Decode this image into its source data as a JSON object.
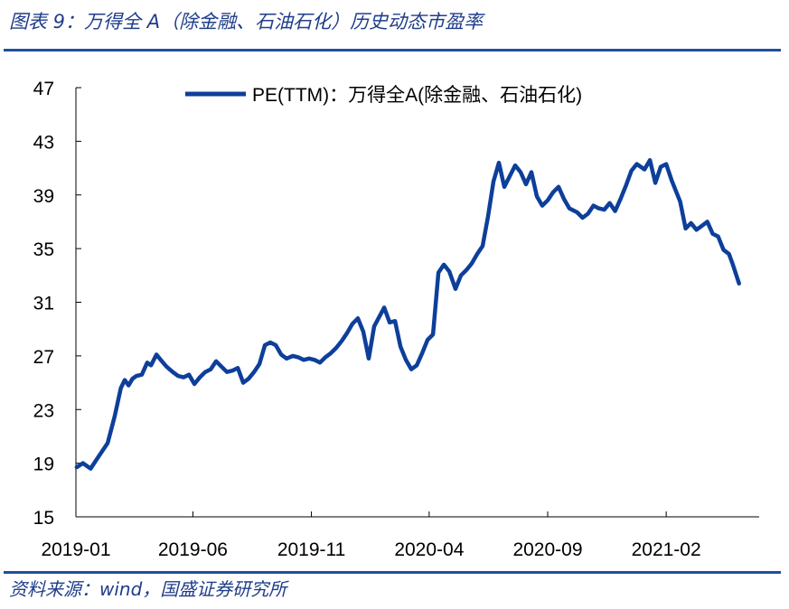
{
  "figure": {
    "title": "图表 9：万得全 A（除金融、石油石化）历史动态市盈率",
    "source": "资料来源：wind，国盛证券研究所"
  },
  "colors": {
    "line": "#0d3f9a",
    "accent": "#1f4fa0",
    "text_accent": "#1f3d8a"
  },
  "chart_data": {
    "type": "line",
    "title": "",
    "xlabel": "",
    "ylabel": "",
    "ylim": [
      15,
      47
    ],
    "yticks": [
      15,
      19,
      23,
      27,
      31,
      35,
      39,
      43,
      47
    ],
    "xlim": [
      "2019-01-01",
      "2021-06-01"
    ],
    "xticks": [
      "2019-01",
      "2019-06",
      "2019-11",
      "2020-04",
      "2020-09",
      "2021-02"
    ],
    "grid": false,
    "legend": "top-center",
    "series": [
      {
        "name": "PE(TTM)：万得全A(除金融、石油石化)",
        "x": [
          "2019-01-02",
          "2019-01-10",
          "2019-01-20",
          "2019-01-28",
          "2019-02-11",
          "2019-02-20",
          "2019-02-28",
          "2019-03-05",
          "2019-03-10",
          "2019-03-15",
          "2019-03-20",
          "2019-03-27",
          "2019-04-03",
          "2019-04-08",
          "2019-04-15",
          "2019-04-22",
          "2019-04-28",
          "2019-05-06",
          "2019-05-13",
          "2019-05-20",
          "2019-05-27",
          "2019-06-03",
          "2019-06-10",
          "2019-06-17",
          "2019-06-24",
          "2019-07-01",
          "2019-07-08",
          "2019-07-15",
          "2019-07-22",
          "2019-07-29",
          "2019-08-05",
          "2019-08-12",
          "2019-08-19",
          "2019-08-26",
          "2019-09-02",
          "2019-09-09",
          "2019-09-16",
          "2019-09-23",
          "2019-09-30",
          "2019-10-08",
          "2019-10-15",
          "2019-10-22",
          "2019-10-29",
          "2019-11-05",
          "2019-11-12",
          "2019-11-19",
          "2019-11-26",
          "2019-12-03",
          "2019-12-10",
          "2019-12-17",
          "2019-12-24",
          "2019-12-31",
          "2020-01-07",
          "2020-01-14",
          "2020-01-21",
          "2020-02-03",
          "2020-02-10",
          "2020-02-17",
          "2020-02-24",
          "2020-03-02",
          "2020-03-09",
          "2020-03-16",
          "2020-03-23",
          "2020-03-30",
          "2020-04-06",
          "2020-04-13",
          "2020-04-20",
          "2020-04-27",
          "2020-05-05",
          "2020-05-12",
          "2020-05-19",
          "2020-05-26",
          "2020-06-02",
          "2020-06-09",
          "2020-06-16",
          "2020-06-23",
          "2020-06-30",
          "2020-07-07",
          "2020-07-14",
          "2020-07-21",
          "2020-07-28",
          "2020-08-04",
          "2020-08-11",
          "2020-08-18",
          "2020-08-25",
          "2020-09-01",
          "2020-09-08",
          "2020-09-15",
          "2020-09-22",
          "2020-09-29",
          "2020-10-09",
          "2020-10-16",
          "2020-10-23",
          "2020-10-30",
          "2020-11-06",
          "2020-11-13",
          "2020-11-20",
          "2020-11-27",
          "2020-12-04",
          "2020-12-11",
          "2020-12-18",
          "2020-12-25",
          "2021-01-04",
          "2021-01-11",
          "2021-01-18",
          "2021-01-25",
          "2021-02-01",
          "2021-02-08",
          "2021-02-19",
          "2021-02-26",
          "2021-03-05",
          "2021-03-12",
          "2021-03-19",
          "2021-03-26",
          "2021-04-02",
          "2021-04-09",
          "2021-04-16",
          "2021-04-23",
          "2021-04-28",
          "2021-05-06"
        ],
        "values": [
          18.7,
          19.0,
          18.6,
          19.3,
          20.5,
          22.5,
          24.6,
          25.2,
          24.8,
          25.3,
          25.5,
          25.6,
          26.5,
          26.3,
          27.1,
          26.6,
          26.2,
          25.8,
          25.5,
          25.4,
          25.6,
          24.9,
          25.4,
          25.8,
          26.0,
          26.6,
          26.2,
          25.8,
          25.9,
          26.1,
          25.0,
          25.3,
          25.8,
          26.4,
          27.8,
          28.0,
          27.8,
          27.1,
          26.8,
          27.0,
          26.9,
          26.7,
          26.8,
          26.7,
          26.5,
          26.9,
          27.2,
          27.6,
          28.1,
          28.7,
          29.4,
          29.8,
          28.8,
          26.8,
          29.2,
          30.6,
          29.5,
          29.6,
          27.7,
          26.7,
          26.0,
          26.3,
          27.2,
          28.2,
          28.6,
          33.2,
          33.8,
          33.3,
          32.0,
          33.0,
          33.4,
          33.9,
          34.6,
          35.2,
          37.4,
          40.0,
          41.4,
          39.6,
          40.4,
          41.2,
          40.7,
          39.8,
          40.7,
          38.9,
          38.2,
          38.6,
          39.2,
          39.6,
          38.7,
          38.0,
          37.7,
          37.3,
          37.6,
          38.2,
          38.0,
          37.9,
          38.4,
          37.8,
          38.7,
          39.7,
          40.8,
          41.3,
          40.9,
          41.6,
          39.9,
          41.1,
          41.3,
          40.1,
          38.5,
          36.5,
          36.9,
          36.4,
          36.7,
          37.0,
          36.1,
          35.9,
          34.9,
          34.6,
          33.8,
          32.4
        ]
      }
    ]
  }
}
